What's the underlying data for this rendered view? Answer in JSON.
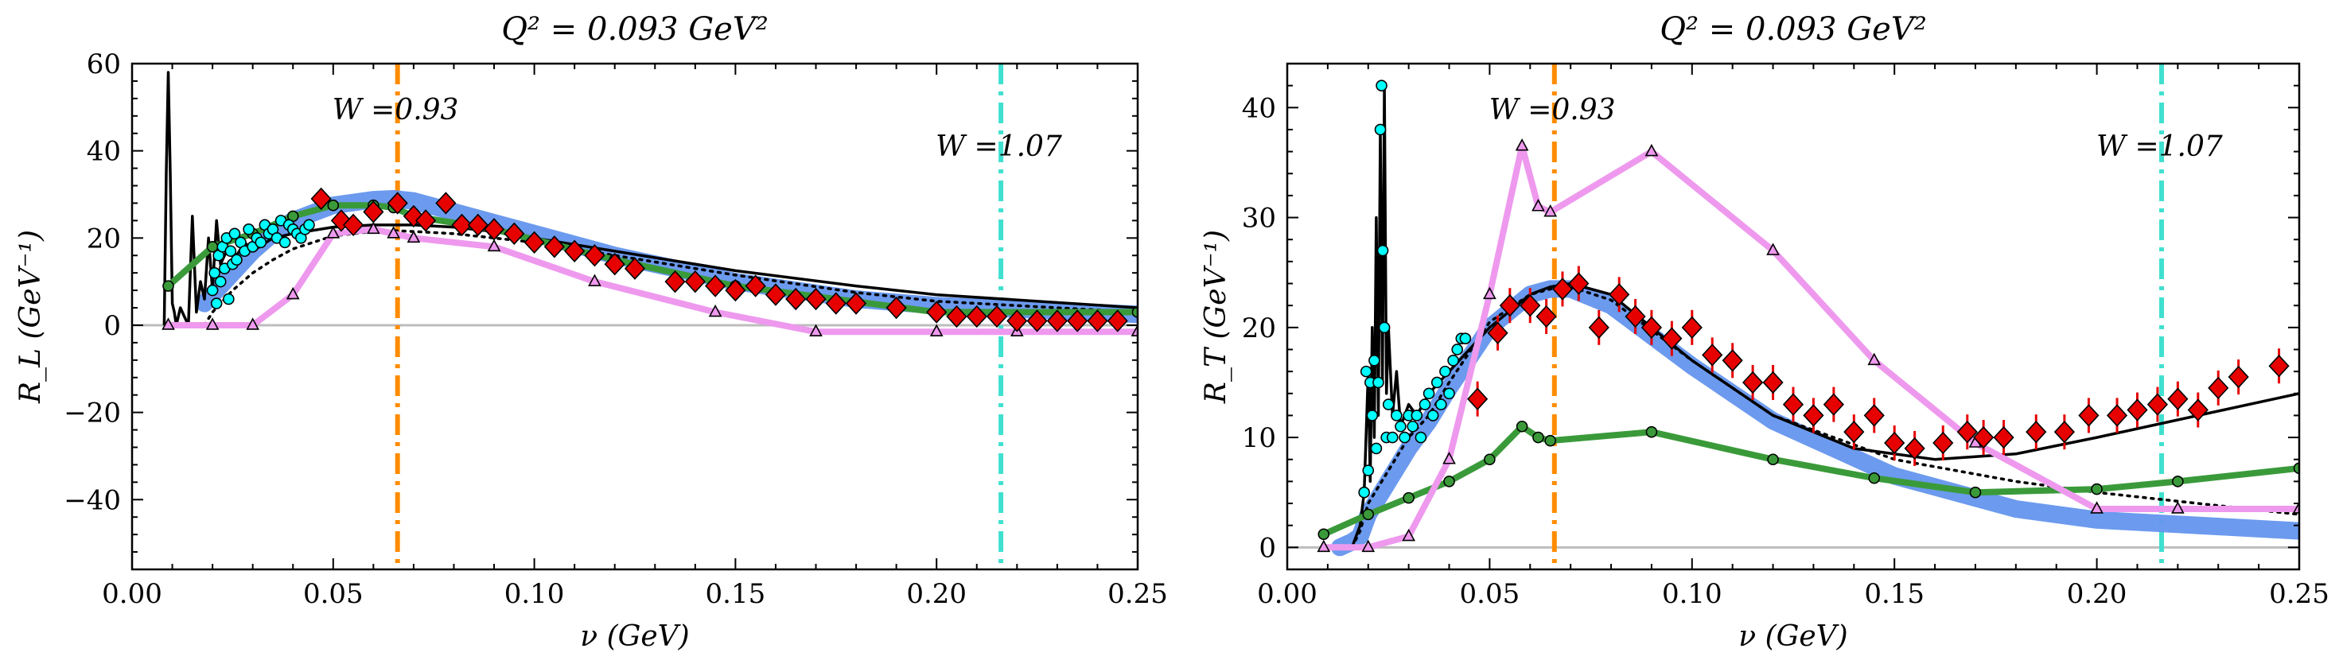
{
  "chart_data": [
    {
      "type": "line",
      "panel": "left",
      "title": "Q² = 0.093 GeV²",
      "xlabel": "ν (GeV)",
      "ylabel": "R_L (GeV⁻¹)",
      "xlim": [
        0.0,
        0.25
      ],
      "ylim": [
        -56,
        60
      ],
      "xticks": [
        0.0,
        0.05,
        0.1,
        0.15,
        0.2,
        0.25
      ],
      "xtick_labels": [
        "0.00",
        "0.05",
        "0.10",
        "0.15",
        "0.20",
        "0.25"
      ],
      "yticks": [
        -40,
        -20,
        0,
        20,
        40,
        60
      ],
      "ytick_labels": [
        "−40",
        "−20",
        "0",
        "20",
        "40",
        "60"
      ],
      "annotations": [
        {
          "text": "W =0.93",
          "x": 0.066,
          "color": "#ff8c00",
          "style": "dashdot"
        },
        {
          "text": "W =1.07",
          "x": 0.216,
          "color": "#40e0d0",
          "style": "dashdot"
        }
      ],
      "series": [
        {
          "style": "band",
          "color": "#6495ed",
          "x": [
            0.018,
            0.025,
            0.03,
            0.035,
            0.04,
            0.05,
            0.06,
            0.065,
            0.07,
            0.08,
            0.09,
            0.1,
            0.12,
            0.15,
            0.18,
            0.2,
            0.25
          ],
          "y": [
            5,
            12,
            17,
            21,
            24,
            27.5,
            28.8,
            29,
            28.5,
            26,
            23.5,
            21,
            16,
            10,
            6,
            4.5,
            2.5
          ]
        },
        {
          "style": "solid",
          "color": "#000000",
          "x": [
            0.008,
            0.0085,
            0.009,
            0.0095,
            0.01,
            0.0105,
            0.011,
            0.012,
            0.013,
            0.014,
            0.015,
            0.016,
            0.017,
            0.018,
            0.019,
            0.02,
            0.021,
            0.022,
            0.024,
            0.026,
            0.028,
            0.03,
            0.035,
            0.04,
            0.05,
            0.06,
            0.07,
            0.08,
            0.09,
            0.1,
            0.12,
            0.15,
            0.18,
            0.2,
            0.25
          ],
          "y": [
            0,
            35,
            58,
            35,
            5,
            3,
            0,
            4,
            2,
            0,
            25,
            3,
            10,
            6,
            20,
            8,
            24,
            14,
            18,
            16,
            19,
            17,
            20,
            21,
            22.5,
            23,
            23,
            22.5,
            21.5,
            20,
            17,
            12.5,
            9,
            7,
            4
          ]
        },
        {
          "style": "dotted",
          "color": "#000000",
          "x": [
            0.018,
            0.02,
            0.025,
            0.03,
            0.035,
            0.04,
            0.05,
            0.06,
            0.065,
            0.07,
            0.08,
            0.09,
            0.1,
            0.12,
            0.15,
            0.18,
            0.2,
            0.25
          ],
          "y": [
            0,
            3,
            8,
            12,
            15,
            17.5,
            20.5,
            21.5,
            21.7,
            21.5,
            21,
            20,
            19,
            16,
            11.5,
            7.5,
            5.5,
            3
          ]
        },
        {
          "style": "solid",
          "color": "#3a9a3a",
          "marker": "o",
          "x": [
            0.009,
            0.02,
            0.03,
            0.04,
            0.05,
            0.06,
            0.065,
            0.07,
            0.09,
            0.12,
            0.15,
            0.2,
            0.25
          ],
          "y": [
            9,
            18,
            21,
            25,
            27.5,
            27.5,
            27,
            25,
            22,
            15,
            9,
            3,
            3
          ]
        },
        {
          "style": "solid",
          "color": "#ee99ee",
          "marker": "^",
          "x": [
            0.009,
            0.02,
            0.03,
            0.04,
            0.05,
            0.06,
            0.065,
            0.07,
            0.09,
            0.115,
            0.145,
            0.17,
            0.2,
            0.22,
            0.25
          ],
          "y": [
            0,
            0,
            0,
            7,
            21,
            22,
            21,
            20,
            18,
            10,
            3,
            -1.5,
            -1.5,
            -1.5,
            -1.5
          ]
        },
        {
          "style": "scatter",
          "color": "#00ffff",
          "marker": "o",
          "name": "",
          "x": [
            0.02,
            0.0205,
            0.021,
            0.0215,
            0.022,
            0.0225,
            0.023,
            0.0235,
            0.024,
            0.0245,
            0.025,
            0.0255,
            0.026,
            0.027,
            0.028,
            0.029,
            0.03,
            0.031,
            0.032,
            0.033,
            0.034,
            0.035,
            0.036,
            0.037,
            0.038,
            0.039,
            0.04,
            0.041,
            0.042,
            0.043,
            0.044
          ],
          "y": [
            8,
            12,
            5,
            16,
            10,
            18,
            13,
            20,
            6,
            17,
            14,
            21,
            15,
            19,
            17,
            22,
            18,
            20,
            19,
            23,
            21,
            22,
            20,
            24,
            19,
            23,
            22,
            21,
            20,
            22,
            23
          ]
        },
        {
          "style": "scatter",
          "color": "#e60000",
          "marker": "D",
          "x": [
            0.047,
            0.052,
            0.055,
            0.06,
            0.066,
            0.07,
            0.073,
            0.078,
            0.082,
            0.086,
            0.09,
            0.095,
            0.1,
            0.105,
            0.11,
            0.115,
            0.12,
            0.125,
            0.135,
            0.14,
            0.145,
            0.15,
            0.155,
            0.16,
            0.165,
            0.17,
            0.175,
            0.18,
            0.19,
            0.2,
            0.205,
            0.21,
            0.215,
            0.22,
            0.225,
            0.23,
            0.235,
            0.24,
            0.245
          ],
          "y": [
            29,
            24,
            23,
            26,
            28,
            25,
            24,
            28,
            23,
            23,
            22,
            21,
            19,
            18,
            17,
            16,
            14,
            13,
            10,
            10,
            9,
            8,
            9,
            7,
            6,
            6,
            5,
            5,
            4,
            3,
            2,
            2,
            2,
            1,
            1,
            1,
            1,
            1,
            1
          ]
        }
      ]
    },
    {
      "type": "line",
      "panel": "right",
      "title": "Q² = 0.093 GeV²",
      "xlabel": "ν (GeV)",
      "ylabel": "R_T (GeV⁻¹)",
      "xlim": [
        0.0,
        0.25
      ],
      "ylim": [
        -2,
        44
      ],
      "xticks": [
        0.0,
        0.05,
        0.1,
        0.15,
        0.2,
        0.25
      ],
      "xtick_labels": [
        "0.00",
        "0.05",
        "0.10",
        "0.15",
        "0.20",
        "0.25"
      ],
      "yticks": [
        0,
        10,
        20,
        30,
        40
      ],
      "ytick_labels": [
        "0",
        "10",
        "20",
        "30",
        "40"
      ],
      "annotations": [
        {
          "text": "W =0.93",
          "x": 0.066,
          "color": "#ff8c00",
          "style": "dashdot"
        },
        {
          "text": "W =1.07",
          "x": 0.216,
          "color": "#40e0d0",
          "style": "dashdot"
        }
      ],
      "series": [
        {
          "style": "band",
          "color": "#6495ed",
          "x": [
            0.013,
            0.016,
            0.018,
            0.02,
            0.025,
            0.03,
            0.035,
            0.04,
            0.05,
            0.06,
            0.065,
            0.07,
            0.08,
            0.1,
            0.12,
            0.15,
            0.18,
            0.2,
            0.25
          ],
          "y": [
            0,
            0.5,
            1,
            3,
            6,
            9,
            11.5,
            14.5,
            20,
            23,
            23.5,
            23.5,
            22,
            16.5,
            11.5,
            6.5,
            3.5,
            2.5,
            1.5
          ]
        },
        {
          "style": "solid",
          "color": "#000000",
          "x": [
            0.016,
            0.018,
            0.019,
            0.02,
            0.0205,
            0.021,
            0.0215,
            0.022,
            0.0225,
            0.023,
            0.0235,
            0.024,
            0.0245,
            0.025,
            0.026,
            0.027,
            0.028,
            0.03,
            0.032,
            0.035,
            0.04,
            0.05,
            0.06,
            0.065,
            0.07,
            0.08,
            0.1,
            0.12,
            0.14,
            0.16,
            0.18,
            0.2,
            0.25
          ],
          "y": [
            0,
            2,
            5,
            16,
            6,
            20,
            10,
            30,
            12,
            38,
            15,
            42,
            14,
            20,
            12,
            16,
            11,
            13,
            12,
            14,
            16,
            20,
            23,
            23.7,
            24,
            23,
            17,
            12,
            9,
            8,
            8.5,
            10,
            14
          ]
        },
        {
          "style": "dotted",
          "color": "#000000",
          "x": [
            0.016,
            0.018,
            0.02,
            0.025,
            0.03,
            0.035,
            0.04,
            0.05,
            0.06,
            0.065,
            0.07,
            0.08,
            0.1,
            0.12,
            0.15,
            0.18,
            0.2,
            0.25
          ],
          "y": [
            0,
            1.5,
            4,
            7,
            10,
            12,
            15,
            20.5,
            23,
            23.5,
            23.7,
            22.5,
            17,
            12,
            8,
            6,
            5,
            3
          ]
        },
        {
          "style": "solid",
          "color": "#3a9a3a",
          "marker": "o",
          "x": [
            0.009,
            0.02,
            0.03,
            0.04,
            0.05,
            0.058,
            0.062,
            0.065,
            0.09,
            0.12,
            0.145,
            0.17,
            0.2,
            0.22,
            0.25
          ],
          "y": [
            1.2,
            3,
            4.5,
            6,
            8,
            11,
            10,
            9.7,
            10.5,
            8,
            6.3,
            5,
            5.3,
            6,
            7.2
          ]
        },
        {
          "style": "solid",
          "color": "#ee99ee",
          "marker": "^",
          "x": [
            0.009,
            0.02,
            0.03,
            0.04,
            0.05,
            0.058,
            0.062,
            0.065,
            0.09,
            0.12,
            0.145,
            0.17,
            0.2,
            0.22,
            0.25
          ],
          "y": [
            0,
            0,
            1,
            8,
            23,
            36.5,
            31,
            30.5,
            36,
            27,
            17,
            9.5,
            3.5,
            3.5,
            3.5
          ]
        },
        {
          "style": "scatter",
          "color": "#00ffff",
          "marker": "o",
          "x": [
            0.019,
            0.0195,
            0.02,
            0.0205,
            0.021,
            0.0215,
            0.022,
            0.0225,
            0.023,
            0.0233,
            0.0236,
            0.024,
            0.0245,
            0.025,
            0.026,
            0.027,
            0.028,
            0.029,
            0.03,
            0.031,
            0.032,
            0.033,
            0.034,
            0.035,
            0.036,
            0.037,
            0.038,
            0.039,
            0.04,
            0.041,
            0.042,
            0.043,
            0.044
          ],
          "y": [
            5,
            16,
            7,
            15,
            12,
            17,
            9,
            15,
            38,
            42,
            27,
            20,
            10,
            13,
            10,
            12,
            11,
            10,
            12,
            11,
            12,
            10,
            13,
            14,
            12,
            15,
            13,
            16,
            14,
            17,
            18,
            19,
            19
          ]
        },
        {
          "style": "scatter",
          "color": "#e60000",
          "marker": "D",
          "x": [
            0.047,
            0.052,
            0.055,
            0.06,
            0.064,
            0.068,
            0.072,
            0.077,
            0.082,
            0.086,
            0.09,
            0.095,
            0.1,
            0.105,
            0.11,
            0.115,
            0.12,
            0.125,
            0.13,
            0.135,
            0.14,
            0.145,
            0.15,
            0.155,
            0.162,
            0.168,
            0.172,
            0.177,
            0.185,
            0.192,
            0.198,
            0.205,
            0.21,
            0.215,
            0.22,
            0.225,
            0.23,
            0.235,
            0.245
          ],
          "y": [
            13.5,
            19.5,
            22,
            22,
            21,
            23.5,
            24,
            20,
            23,
            21,
            20,
            19,
            20,
            17.5,
            17,
            15,
            15,
            13,
            12,
            13,
            10.5,
            12,
            9.5,
            9,
            9.5,
            10.5,
            10,
            10,
            10.5,
            10.5,
            12,
            12,
            12.5,
            13,
            13.5,
            12.5,
            14.5,
            15.5,
            16.5
          ]
        }
      ]
    }
  ]
}
